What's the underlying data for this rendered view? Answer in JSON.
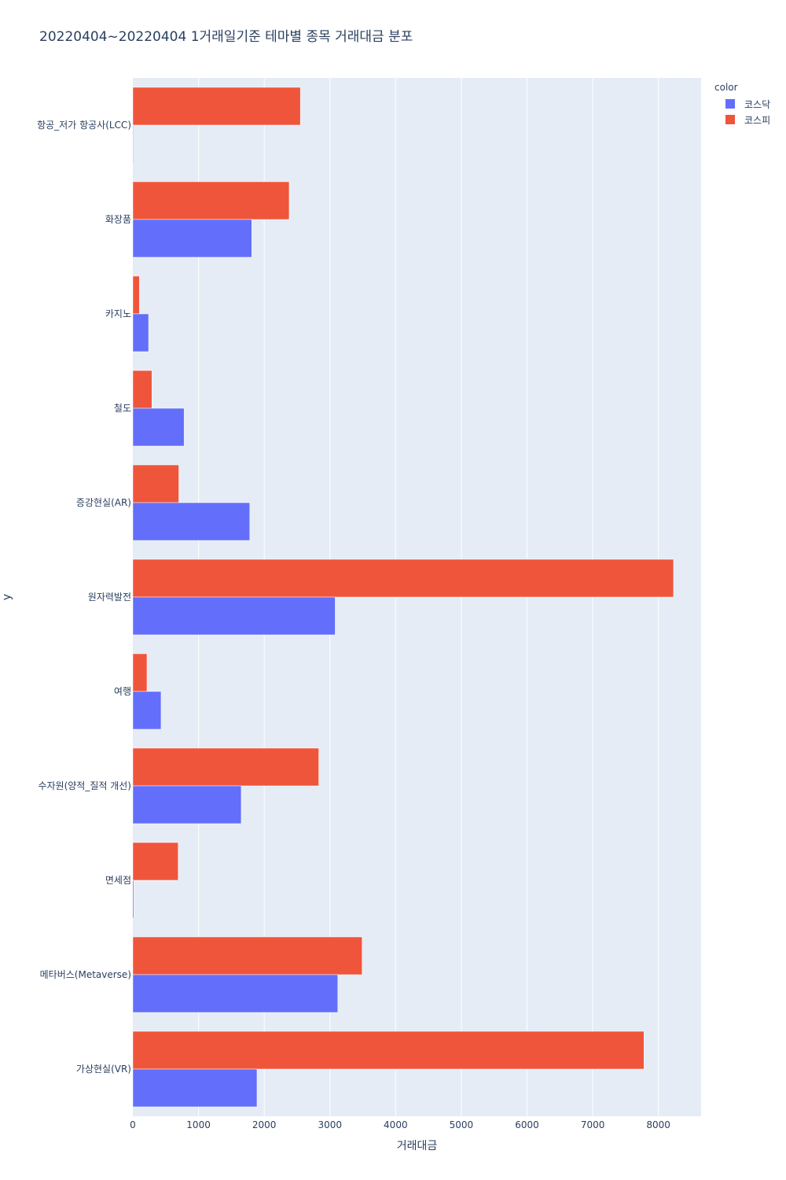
{
  "chart_data": {
    "type": "bar",
    "orientation": "horizontal",
    "title": "20220404~20220404 1거래일기준 테마별 종목 거래대금 분포",
    "xlabel": "거래대금",
    "ylabel": "y",
    "categories": [
      "항공_저가 항공사(LCC)",
      "화장품",
      "카지노",
      "철도",
      "증강현실(AR)",
      "원자력발전",
      "여행",
      "수자원(양적_질적 개선)",
      "면세점",
      "메타버스(Metaverse)",
      "가상현실(VR)"
    ],
    "series": [
      {
        "name": "코스닥",
        "color": "#636efa",
        "values": [
          0,
          1810,
          240,
          780,
          1780,
          3080,
          430,
          1650,
          15,
          3120,
          1890
        ]
      },
      {
        "name": "코스피",
        "color": "#ef553b",
        "values": [
          2550,
          2380,
          100,
          290,
          700,
          8230,
          215,
          2830,
          690,
          3490,
          7780
        ]
      }
    ],
    "xlim": [
      0,
      8650
    ],
    "xticks": [
      0,
      1000,
      2000,
      3000,
      4000,
      5000,
      6000,
      7000,
      8000
    ],
    "grid": true,
    "legend_title": "color",
    "legend_position": "top-right",
    "plot_background": "#e5ecf6"
  }
}
